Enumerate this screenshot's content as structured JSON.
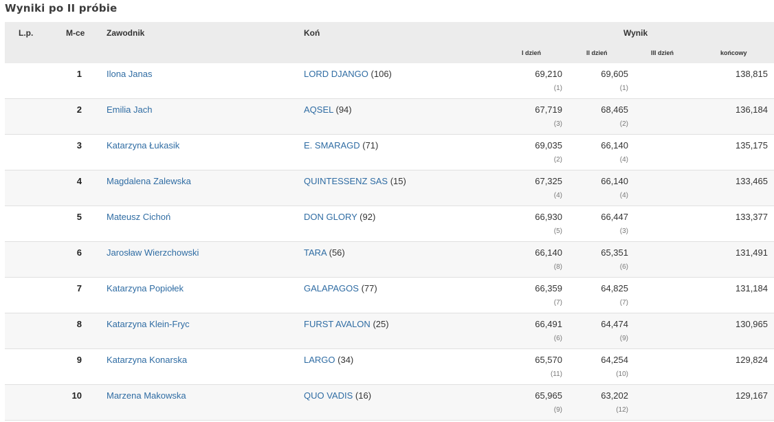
{
  "title": "Wyniki po II próbie",
  "headers": {
    "lp": "L.p.",
    "mce": "M-ce",
    "zawodnik": "Zawodnik",
    "kon": "Koń",
    "wynik": "Wynik",
    "day1": "I dzień",
    "day2": "II dzień",
    "day3": "III dzień",
    "final": "końcowy"
  },
  "rows": [
    {
      "place": "1",
      "rider": "Ilona Janas",
      "horse": "LORD DJANGO",
      "horse_no": "(106)",
      "d1": "69,210",
      "d1r": "(1)",
      "d2": "69,605",
      "d2r": "(1)",
      "final": "138,815"
    },
    {
      "place": "2",
      "rider": "Emilia Jach",
      "horse": "AQSEL",
      "horse_no": "(94)",
      "d1": "67,719",
      "d1r": "(3)",
      "d2": "68,465",
      "d2r": "(2)",
      "final": "136,184"
    },
    {
      "place": "3",
      "rider": "Katarzyna Łukasik",
      "horse": "E. SMARAGD",
      "horse_no": "(71)",
      "d1": "69,035",
      "d1r": "(2)",
      "d2": "66,140",
      "d2r": "(4)",
      "final": "135,175"
    },
    {
      "place": "4",
      "rider": "Magdalena Zalewska",
      "horse": "QUINTESSENZ SAS",
      "horse_no": "(15)",
      "d1": "67,325",
      "d1r": "(4)",
      "d2": "66,140",
      "d2r": "(4)",
      "final": "133,465"
    },
    {
      "place": "5",
      "rider": "Mateusz Cichoń",
      "horse": "DON GLORY",
      "horse_no": "(92)",
      "d1": "66,930",
      "d1r": "(5)",
      "d2": "66,447",
      "d2r": "(3)",
      "final": "133,377"
    },
    {
      "place": "6",
      "rider": "Jarosław Wierzchowski",
      "horse": "TARA",
      "horse_no": "(56)",
      "d1": "66,140",
      "d1r": "(8)",
      "d2": "65,351",
      "d2r": "(6)",
      "final": "131,491"
    },
    {
      "place": "7",
      "rider": "Katarzyna Popiołek",
      "horse": "GALAPAGOS",
      "horse_no": "(77)",
      "d1": "66,359",
      "d1r": "(7)",
      "d2": "64,825",
      "d2r": "(7)",
      "final": "131,184"
    },
    {
      "place": "8",
      "rider": "Katarzyna Klein-Fryc",
      "horse": "FURST AVALON",
      "horse_no": "(25)",
      "d1": "66,491",
      "d1r": "(6)",
      "d2": "64,474",
      "d2r": "(9)",
      "final": "130,965"
    },
    {
      "place": "9",
      "rider": "Katarzyna Konarska",
      "horse": "LARGO",
      "horse_no": "(34)",
      "d1": "65,570",
      "d1r": "(11)",
      "d2": "64,254",
      "d2r": "(10)",
      "final": "129,824"
    },
    {
      "place": "10",
      "rider": "Marzena Makowska",
      "horse": "QUO VADIS",
      "horse_no": "(16)",
      "d1": "65,965",
      "d1r": "(9)",
      "d2": "63,202",
      "d2r": "(12)",
      "final": "129,167"
    }
  ],
  "colors": {
    "link": "#2f6ca3",
    "header_bg": "#ececec"
  }
}
